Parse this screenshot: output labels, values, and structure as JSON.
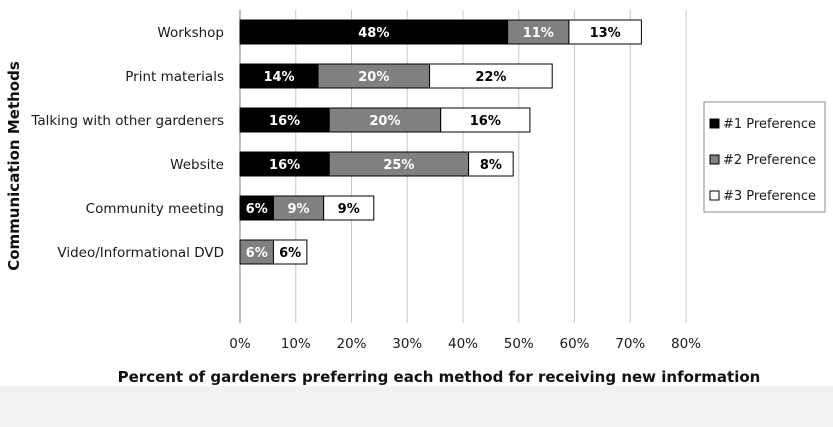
{
  "chart_data": {
    "type": "bar",
    "orientation": "horizontal",
    "stacked": true,
    "title": "",
    "xlabel": "Percent of gardeners preferring each method for receiving new information",
    "ylabel": "Communication Methods",
    "categories": [
      "Workshop",
      "Print materials",
      "Talking with other gardeners",
      "Website",
      "Community meeting",
      "Video/Informational DVD"
    ],
    "series": [
      {
        "name": "#1 Preference",
        "color": "#000000",
        "label_color": "#ffffff",
        "values": [
          48,
          14,
          16,
          16,
          6,
          0
        ],
        "labels": [
          "48%",
          "14%",
          "16%",
          "16%",
          "6%",
          ""
        ]
      },
      {
        "name": "#2 Preference",
        "color": "#808080",
        "label_color": "#ffffff",
        "values": [
          11,
          20,
          20,
          25,
          9,
          6
        ],
        "labels": [
          "11%",
          "20%",
          "20%",
          "25%",
          "9%",
          "6%"
        ]
      },
      {
        "name": "#3 Preference",
        "color": "#ffffff",
        "label_color": "#000000",
        "values": [
          13,
          22,
          16,
          8,
          9,
          6
        ],
        "labels": [
          "13%",
          "22%",
          "16%",
          "8%",
          "9%",
          "6%"
        ]
      }
    ],
    "x_ticks": [
      "0%",
      "10%",
      "20%",
      "30%",
      "40%",
      "50%",
      "60%",
      "70%",
      "80%"
    ],
    "xlim": [
      0,
      80
    ],
    "x_tick_step": 10,
    "grid": "vertical",
    "legend_position": "right"
  }
}
